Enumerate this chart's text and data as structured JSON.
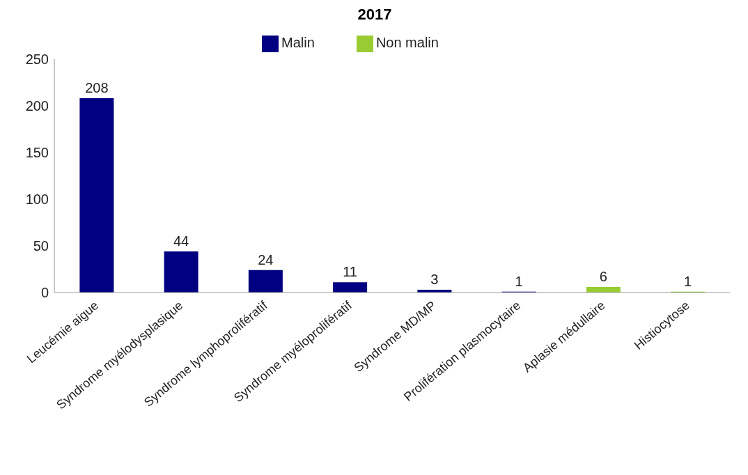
{
  "chart_data": {
    "type": "bar",
    "title": "2017",
    "categories": [
      "Leucémie aigue",
      "Syndrome myélodysplasique",
      "Syndrome lymphoprolifératif",
      "Syndrome myéloprolifératif",
      "Syndrome MD/MP",
      "Prolifération plasmocytaire",
      "Aplasie médullaire",
      "Histiocytose"
    ],
    "series": [
      {
        "name": "Malin",
        "color": "#000080",
        "values": [
          208,
          44,
          24,
          11,
          3,
          1,
          null,
          null
        ]
      },
      {
        "name": "Non malin",
        "color": "#99cc33",
        "values": [
          null,
          null,
          null,
          null,
          null,
          null,
          6,
          1
        ]
      }
    ],
    "stacked": true,
    "ylim": [
      0,
      250
    ],
    "yticks": [
      0,
      50,
      100,
      150,
      200,
      250
    ],
    "grid": false,
    "legend": "top",
    "data_labels": true
  }
}
